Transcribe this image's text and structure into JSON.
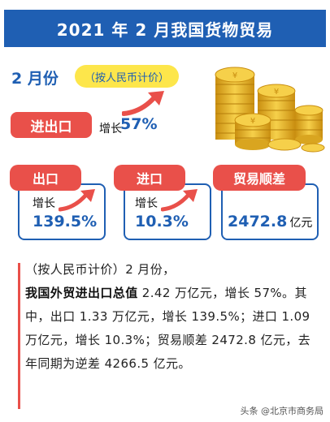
{
  "title": "2021 年 2 月我国货物贸易",
  "month_label": "2 月份",
  "currency_note": "（按人民币计价）",
  "overall": {
    "label": "进出口",
    "growth_label": "增长",
    "growth_value": "57%"
  },
  "cards": [
    {
      "tag": "出口",
      "growth_label": "增长",
      "value": "139.5%"
    },
    {
      "tag": "进口",
      "growth_label": "增长",
      "value": "10.3%"
    },
    {
      "tag": "贸易顺差",
      "value": "2472.8",
      "unit": "亿元"
    }
  ],
  "paragraph": {
    "p1": "（按人民币计价）2 月份，",
    "p2_bold": "我国外贸进出口总值",
    "p2_rest": " 2.42 万亿元，增长 57%。其中，出口 1.33 万亿元，增长 139.5%；进口 1.09 万亿元，增长 10.3%；贸易顺差 2472.8 亿元，去年同期为逆差 4266.5 亿元。"
  },
  "watermark": "头条 @北京市商务局",
  "colors": {
    "primary": "#1f5fb3",
    "accent_red": "#e9504a",
    "highlight": "#fde64b",
    "gold": "#e8b92a"
  }
}
